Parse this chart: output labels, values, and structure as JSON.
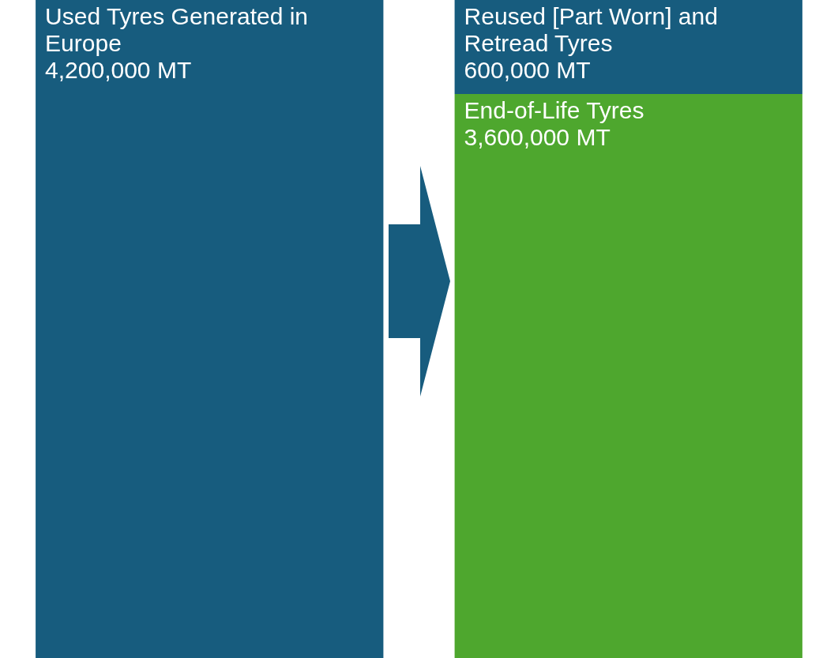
{
  "chart_data": {
    "type": "bar",
    "stacked": true,
    "categories": [
      null,
      null
    ],
    "series": [
      {
        "name": "Used Tyres Generated in Europe",
        "color": "#175c7e",
        "values": [
          4200000,
          null
        ],
        "value_labels": [
          "4,200,000 MT",
          null
        ]
      },
      {
        "name": "End-of-Life Tyres",
        "color": "#4ea72e",
        "values": [
          null,
          3600000
        ],
        "value_labels": [
          null,
          "3,600,000 MT"
        ]
      },
      {
        "name": "Reused [Part Worn] and Retread Tyres",
        "color": "#175c7e",
        "values": [
          null,
          600000
        ],
        "value_labels": [
          null,
          "600,000 MT"
        ]
      }
    ]
  }
}
